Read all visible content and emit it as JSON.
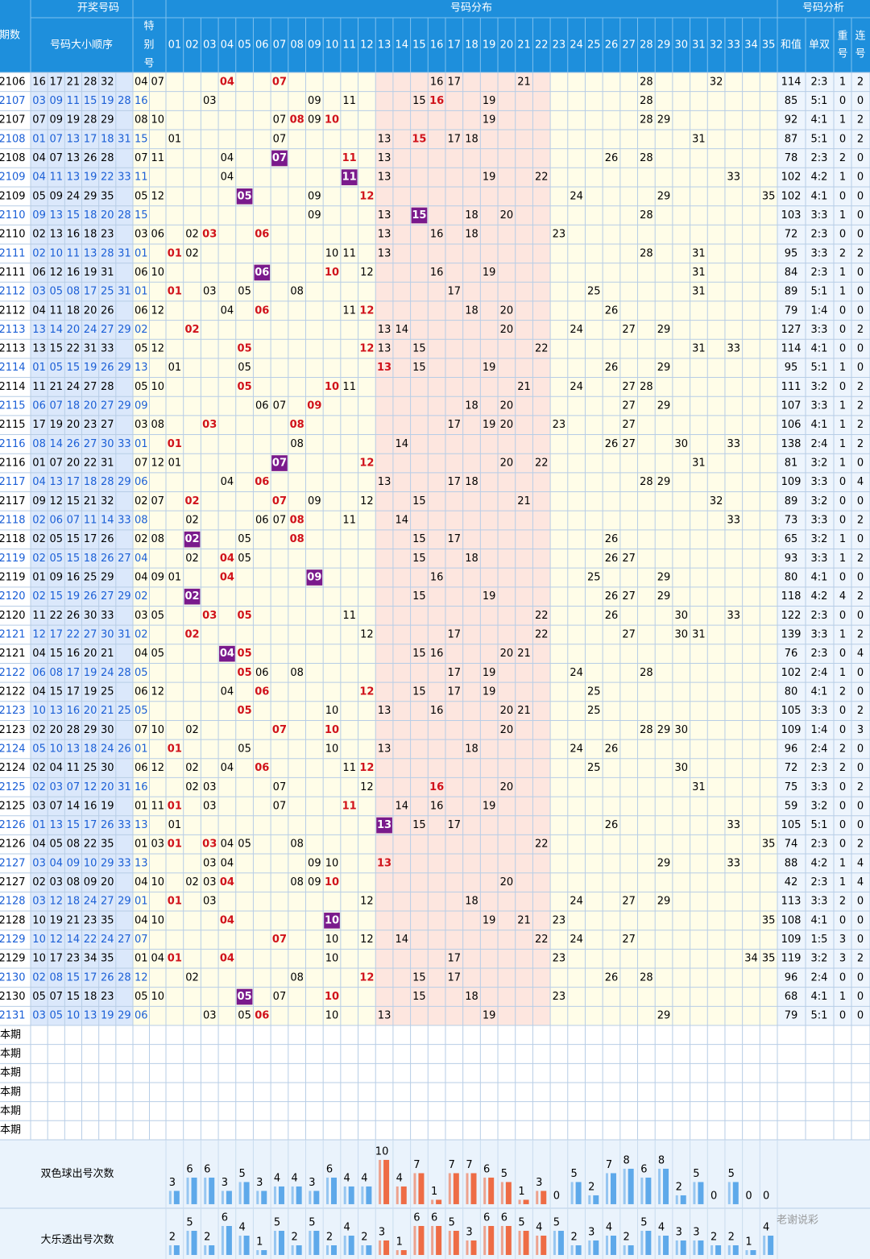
{
  "header": {
    "groups": [
      "开奖号码",
      "号码分布",
      "号码分析"
    ],
    "period": "期数",
    "sorted": "号码大小顺序",
    "special": [
      "特",
      "别",
      "号"
    ],
    "numbers": [
      "01",
      "02",
      "03",
      "04",
      "05",
      "06",
      "07",
      "08",
      "09",
      "10",
      "11",
      "12",
      "13",
      "14",
      "15",
      "16",
      "17",
      "18",
      "19",
      "20",
      "21",
      "22",
      "23",
      "24",
      "25",
      "26",
      "27",
      "28",
      "29",
      "30",
      "31",
      "32",
      "33",
      "34",
      "35"
    ],
    "sum": "和值",
    "odd_even": "单双",
    "repeat": [
      "重",
      "号"
    ],
    "consecutive": [
      "连",
      "号"
    ]
  },
  "zone": {
    "from": 13,
    "to": 22,
    "fill": "#fde6df",
    "bar": "#ee6c45",
    "base_fill": "#fffde8",
    "base_bar": "#5ea9ea"
  },
  "rows": [
    {
      "period": "2106",
      "main": [
        "16",
        "17",
        "21",
        "28",
        "32"
      ],
      "special": [
        "04",
        "07"
      ],
      "sum": 114,
      "odd_even": "2:3",
      "repeat": 1,
      "consecutive": 2
    },
    {
      "period": "2107",
      "main": [
        "03",
        "09",
        "11",
        "15",
        "19",
        "28"
      ],
      "special": [
        "16"
      ],
      "sum": 85,
      "odd_even": "5:1",
      "repeat": 0,
      "consecutive": 0
    },
    {
      "period": "2107",
      "main": [
        "07",
        "09",
        "19",
        "28",
        "29"
      ],
      "special": [
        "08",
        "10"
      ],
      "sum": 92,
      "odd_even": "4:1",
      "repeat": 1,
      "consecutive": 2
    },
    {
      "period": "2108",
      "main": [
        "01",
        "07",
        "13",
        "17",
        "18",
        "31"
      ],
      "special": [
        "15"
      ],
      "sum": 87,
      "odd_even": "5:1",
      "repeat": 0,
      "consecutive": 2
    },
    {
      "period": "2108",
      "main": [
        "04",
        "07",
        "13",
        "26",
        "28"
      ],
      "special": [
        "07",
        "11"
      ],
      "sum": 78,
      "odd_even": "2:3",
      "repeat": 2,
      "consecutive": 0
    },
    {
      "period": "2109",
      "main": [
        "04",
        "11",
        "13",
        "19",
        "22",
        "33"
      ],
      "special": [
        "11"
      ],
      "sum": 102,
      "odd_even": "4:2",
      "repeat": 1,
      "consecutive": 0
    },
    {
      "period": "2109",
      "main": [
        "05",
        "09",
        "24",
        "29",
        "35"
      ],
      "special": [
        "05",
        "12"
      ],
      "sum": 102,
      "odd_even": "4:1",
      "repeat": 0,
      "consecutive": 0
    },
    {
      "period": "2110",
      "main": [
        "09",
        "13",
        "15",
        "18",
        "20",
        "28"
      ],
      "special": [
        "15"
      ],
      "sum": 103,
      "odd_even": "3:3",
      "repeat": 1,
      "consecutive": 0
    },
    {
      "period": "2110",
      "main": [
        "02",
        "13",
        "16",
        "18",
        "23"
      ],
      "special": [
        "03",
        "06"
      ],
      "sum": 72,
      "odd_even": "2:3",
      "repeat": 0,
      "consecutive": 0
    },
    {
      "period": "2111",
      "main": [
        "02",
        "10",
        "11",
        "13",
        "28",
        "31"
      ],
      "special": [
        "01"
      ],
      "sum": 95,
      "odd_even": "3:3",
      "repeat": 2,
      "consecutive": 2
    },
    {
      "period": "2111",
      "main": [
        "06",
        "12",
        "16",
        "19",
        "31"
      ],
      "special": [
        "06",
        "10"
      ],
      "sum": 84,
      "odd_even": "2:3",
      "repeat": 1,
      "consecutive": 0
    },
    {
      "period": "2112",
      "main": [
        "03",
        "05",
        "08",
        "17",
        "25",
        "31"
      ],
      "special": [
        "01"
      ],
      "sum": 89,
      "odd_even": "5:1",
      "repeat": 1,
      "consecutive": 0
    },
    {
      "period": "2112",
      "main": [
        "04",
        "11",
        "18",
        "20",
        "26"
      ],
      "special": [
        "06",
        "12"
      ],
      "sum": 79,
      "odd_even": "1:4",
      "repeat": 0,
      "consecutive": 0
    },
    {
      "period": "2113",
      "main": [
        "13",
        "14",
        "20",
        "24",
        "27",
        "29"
      ],
      "special": [
        "02"
      ],
      "sum": 127,
      "odd_even": "3:3",
      "repeat": 0,
      "consecutive": 2
    },
    {
      "period": "2113",
      "main": [
        "13",
        "15",
        "22",
        "31",
        "33"
      ],
      "special": [
        "05",
        "12"
      ],
      "sum": 114,
      "odd_even": "4:1",
      "repeat": 0,
      "consecutive": 0
    },
    {
      "period": "2114",
      "main": [
        "01",
        "05",
        "15",
        "19",
        "26",
        "29"
      ],
      "special": [
        "13"
      ],
      "sum": 95,
      "odd_even": "5:1",
      "repeat": 1,
      "consecutive": 0
    },
    {
      "period": "2114",
      "main": [
        "11",
        "21",
        "24",
        "27",
        "28"
      ],
      "special": [
        "05",
        "10"
      ],
      "sum": 111,
      "odd_even": "3:2",
      "repeat": 0,
      "consecutive": 2
    },
    {
      "period": "2115",
      "main": [
        "06",
        "07",
        "18",
        "20",
        "27",
        "29"
      ],
      "special": [
        "09"
      ],
      "sum": 107,
      "odd_even": "3:3",
      "repeat": 1,
      "consecutive": 2
    },
    {
      "period": "2115",
      "main": [
        "17",
        "19",
        "20",
        "23",
        "27"
      ],
      "special": [
        "03",
        "08"
      ],
      "sum": 106,
      "odd_even": "4:1",
      "repeat": 1,
      "consecutive": 2
    },
    {
      "period": "2116",
      "main": [
        "08",
        "14",
        "26",
        "27",
        "30",
        "33"
      ],
      "special": [
        "01"
      ],
      "sum": 138,
      "odd_even": "2:4",
      "repeat": 1,
      "consecutive": 2
    },
    {
      "period": "2116",
      "main": [
        "01",
        "07",
        "20",
        "22",
        "31"
      ],
      "special": [
        "07",
        "12"
      ],
      "sum": 81,
      "odd_even": "3:2",
      "repeat": 1,
      "consecutive": 0
    },
    {
      "period": "2117",
      "main": [
        "04",
        "13",
        "17",
        "18",
        "28",
        "29"
      ],
      "special": [
        "06"
      ],
      "sum": 109,
      "odd_even": "3:3",
      "repeat": 0,
      "consecutive": 4
    },
    {
      "period": "2117",
      "main": [
        "09",
        "12",
        "15",
        "21",
        "32"
      ],
      "special": [
        "02",
        "07"
      ],
      "sum": 89,
      "odd_even": "3:2",
      "repeat": 0,
      "consecutive": 0
    },
    {
      "period": "2118",
      "main": [
        "02",
        "06",
        "07",
        "11",
        "14",
        "33"
      ],
      "special": [
        "08"
      ],
      "sum": 73,
      "odd_even": "3:3",
      "repeat": 0,
      "consecutive": 2
    },
    {
      "period": "2118",
      "main": [
        "02",
        "05",
        "15",
        "17",
        "26"
      ],
      "special": [
        "02",
        "08"
      ],
      "sum": 65,
      "odd_even": "3:2",
      "repeat": 1,
      "consecutive": 0
    },
    {
      "period": "2119",
      "main": [
        "02",
        "05",
        "15",
        "18",
        "26",
        "27"
      ],
      "special": [
        "04"
      ],
      "sum": 93,
      "odd_even": "3:3",
      "repeat": 1,
      "consecutive": 2
    },
    {
      "period": "2119",
      "main": [
        "01",
        "09",
        "16",
        "25",
        "29"
      ],
      "special": [
        "04",
        "09"
      ],
      "sum": 80,
      "odd_even": "4:1",
      "repeat": 0,
      "consecutive": 0
    },
    {
      "period": "2120",
      "main": [
        "02",
        "15",
        "19",
        "26",
        "27",
        "29"
      ],
      "special": [
        "02"
      ],
      "sum": 118,
      "odd_even": "4:2",
      "repeat": 4,
      "consecutive": 2
    },
    {
      "period": "2120",
      "main": [
        "11",
        "22",
        "26",
        "30",
        "33"
      ],
      "special": [
        "03",
        "05"
      ],
      "sum": 122,
      "odd_even": "2:3",
      "repeat": 0,
      "consecutive": 0
    },
    {
      "period": "2121",
      "main": [
        "12",
        "17",
        "22",
        "27",
        "30",
        "31"
      ],
      "special": [
        "02"
      ],
      "sum": 139,
      "odd_even": "3:3",
      "repeat": 1,
      "consecutive": 2
    },
    {
      "period": "2121",
      "main": [
        "04",
        "15",
        "16",
        "20",
        "21"
      ],
      "special": [
        "04",
        "05"
      ],
      "sum": 76,
      "odd_even": "2:3",
      "repeat": 0,
      "consecutive": 4
    },
    {
      "period": "2122",
      "main": [
        "06",
        "08",
        "17",
        "19",
        "24",
        "28"
      ],
      "special": [
        "05"
      ],
      "sum": 102,
      "odd_even": "2:4",
      "repeat": 1,
      "consecutive": 0
    },
    {
      "period": "2122",
      "main": [
        "04",
        "15",
        "17",
        "19",
        "25"
      ],
      "special": [
        "06",
        "12"
      ],
      "sum": 80,
      "odd_even": "4:1",
      "repeat": 2,
      "consecutive": 0
    },
    {
      "period": "2123",
      "main": [
        "10",
        "13",
        "16",
        "20",
        "21",
        "25"
      ],
      "special": [
        "05"
      ],
      "sum": 105,
      "odd_even": "3:3",
      "repeat": 0,
      "consecutive": 2
    },
    {
      "period": "2123",
      "main": [
        "02",
        "20",
        "28",
        "29",
        "30"
      ],
      "special": [
        "07",
        "10"
      ],
      "sum": 109,
      "odd_even": "1:4",
      "repeat": 0,
      "consecutive": 3
    },
    {
      "period": "2124",
      "main": [
        "05",
        "10",
        "13",
        "18",
        "24",
        "26"
      ],
      "special": [
        "01"
      ],
      "sum": 96,
      "odd_even": "2:4",
      "repeat": 2,
      "consecutive": 0
    },
    {
      "period": "2124",
      "main": [
        "02",
        "04",
        "11",
        "25",
        "30"
      ],
      "special": [
        "06",
        "12"
      ],
      "sum": 72,
      "odd_even": "2:3",
      "repeat": 2,
      "consecutive": 0
    },
    {
      "period": "2125",
      "main": [
        "02",
        "03",
        "07",
        "12",
        "20",
        "31"
      ],
      "special": [
        "16"
      ],
      "sum": 75,
      "odd_even": "3:3",
      "repeat": 0,
      "consecutive": 2
    },
    {
      "period": "2125",
      "main": [
        "03",
        "07",
        "14",
        "16",
        "19"
      ],
      "special": [
        "01",
        "11"
      ],
      "sum": 59,
      "odd_even": "3:2",
      "repeat": 0,
      "consecutive": 0
    },
    {
      "period": "2126",
      "main": [
        "01",
        "13",
        "15",
        "17",
        "26",
        "33"
      ],
      "special": [
        "13"
      ],
      "sum": 105,
      "odd_even": "5:1",
      "repeat": 0,
      "consecutive": 0
    },
    {
      "period": "2126",
      "main": [
        "04",
        "05",
        "08",
        "22",
        "35"
      ],
      "special": [
        "01",
        "03"
      ],
      "sum": 74,
      "odd_even": "2:3",
      "repeat": 0,
      "consecutive": 2
    },
    {
      "period": "2127",
      "main": [
        "03",
        "04",
        "09",
        "10",
        "29",
        "33"
      ],
      "special": [
        "13"
      ],
      "sum": 88,
      "odd_even": "4:2",
      "repeat": 1,
      "consecutive": 4
    },
    {
      "period": "2127",
      "main": [
        "02",
        "03",
        "08",
        "09",
        "20"
      ],
      "special": [
        "04",
        "10"
      ],
      "sum": 42,
      "odd_even": "2:3",
      "repeat": 1,
      "consecutive": 4
    },
    {
      "period": "2128",
      "main": [
        "03",
        "12",
        "18",
        "24",
        "27",
        "29"
      ],
      "special": [
        "01"
      ],
      "sum": 113,
      "odd_even": "3:3",
      "repeat": 2,
      "consecutive": 0
    },
    {
      "period": "2128",
      "main": [
        "10",
        "19",
        "21",
        "23",
        "35"
      ],
      "special": [
        "04",
        "10"
      ],
      "sum": 108,
      "odd_even": "4:1",
      "repeat": 0,
      "consecutive": 0
    },
    {
      "period": "2129",
      "main": [
        "10",
        "12",
        "14",
        "22",
        "24",
        "27"
      ],
      "special": [
        "07"
      ],
      "sum": 109,
      "odd_even": "1:5",
      "repeat": 3,
      "consecutive": 0
    },
    {
      "period": "2129",
      "main": [
        "10",
        "17",
        "23",
        "34",
        "35"
      ],
      "special": [
        "01",
        "04"
      ],
      "sum": 119,
      "odd_even": "3:2",
      "repeat": 3,
      "consecutive": 2
    },
    {
      "period": "2130",
      "main": [
        "02",
        "08",
        "15",
        "17",
        "26",
        "28"
      ],
      "special": [
        "12"
      ],
      "sum": 96,
      "odd_even": "2:4",
      "repeat": 0,
      "consecutive": 0
    },
    {
      "period": "2130",
      "main": [
        "05",
        "07",
        "15",
        "18",
        "23"
      ],
      "special": [
        "05",
        "10"
      ],
      "sum": 68,
      "odd_even": "4:1",
      "repeat": 1,
      "consecutive": 0
    },
    {
      "period": "2131",
      "main": [
        "03",
        "05",
        "10",
        "13",
        "19",
        "29"
      ],
      "special": [
        "06"
      ],
      "sum": 79,
      "odd_even": "5:1",
      "repeat": 0,
      "consecutive": 0
    }
  ],
  "blank_rows": [
    "本期",
    "本期",
    "本期",
    "本期",
    "本期",
    "本期"
  ],
  "counts": [
    {
      "label": "双色球出号次数",
      "values": [
        3,
        6,
        6,
        3,
        5,
        3,
        4,
        4,
        3,
        6,
        4,
        4,
        10,
        4,
        7,
        1,
        7,
        7,
        6,
        5,
        1,
        3,
        0,
        5,
        2,
        7,
        8,
        6,
        8,
        2,
        5,
        0,
        5,
        0,
        0
      ]
    },
    {
      "label": "大乐透出号次数",
      "values": [
        2,
        5,
        2,
        6,
        4,
        1,
        5,
        2,
        5,
        2,
        4,
        2,
        3,
        1,
        6,
        6,
        5,
        3,
        6,
        6,
        5,
        4,
        5,
        2,
        3,
        4,
        2,
        5,
        4,
        3,
        3,
        2,
        2,
        1,
        4
      ]
    }
  ],
  "watermark": "老谢说彩"
}
